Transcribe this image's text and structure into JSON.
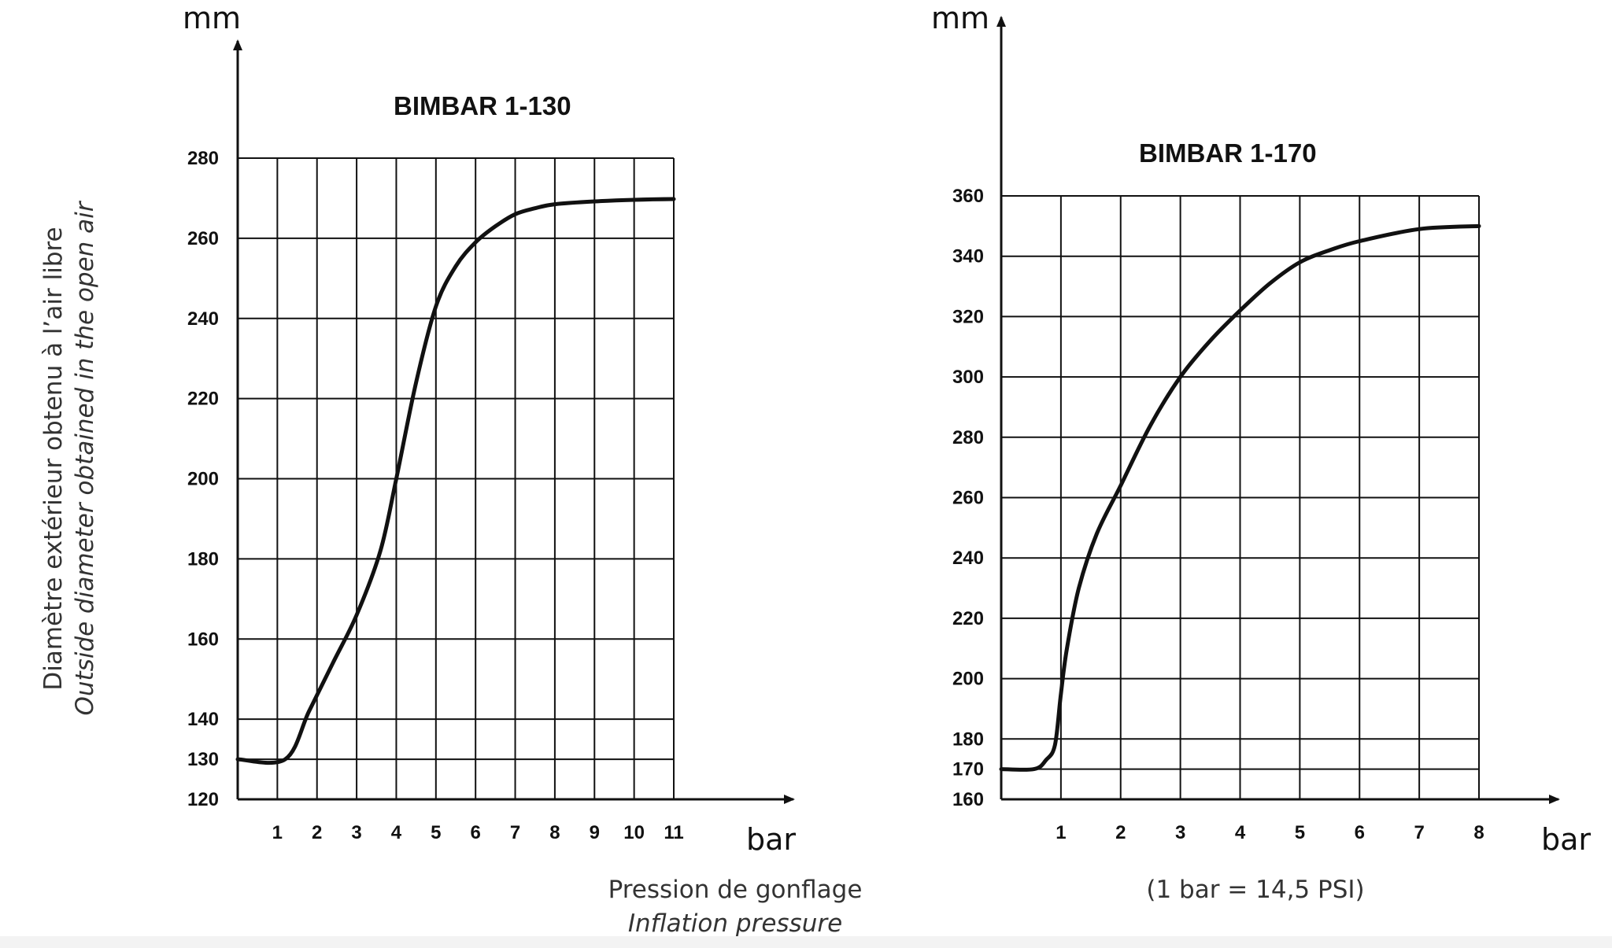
{
  "y_axis_label": {
    "fr": "Diamètre extérieur obtenu à l’air libre",
    "en": "Outside diameter obtained in the open air"
  },
  "x_axis_label": {
    "fr": "Pression de gonflage",
    "en": "Inflation pressure"
  },
  "footnote": "(1 bar = 14,5 PSI)",
  "chart_data": [
    {
      "type": "line",
      "title": "BIMBAR 1-130",
      "xlabel": "bar",
      "ylabel": "mm",
      "xlim": [
        0,
        11
      ],
      "ylim": [
        120,
        280
      ],
      "x_ticks": [
        1,
        2,
        3,
        4,
        5,
        6,
        7,
        8,
        9,
        10,
        11
      ],
      "y_ticks": [
        120,
        130,
        140,
        160,
        180,
        200,
        220,
        240,
        260,
        280
      ],
      "grid": true,
      "series": [
        {
          "name": "BIMBAR 1-130",
          "x": [
            0,
            1.2,
            1.8,
            2.4,
            3,
            3.6,
            4,
            4.5,
            5,
            5.5,
            6,
            6.5,
            7,
            7.5,
            8,
            9,
            10,
            11
          ],
          "y": [
            130,
            130,
            142,
            154,
            166,
            182,
            200,
            224,
            243,
            253,
            259,
            263,
            266,
            267.5,
            268.5,
            269.2,
            269.6,
            269.8
          ]
        }
      ]
    },
    {
      "type": "line",
      "title": "BIMBAR 1-170",
      "xlabel": "bar",
      "ylabel": "mm",
      "xlim": [
        0,
        8
      ],
      "ylim": [
        160,
        360
      ],
      "x_ticks": [
        1,
        2,
        3,
        4,
        5,
        6,
        7,
        8
      ],
      "y_ticks": [
        160,
        170,
        180,
        200,
        220,
        240,
        260,
        280,
        300,
        320,
        340,
        360
      ],
      "grid": true,
      "series": [
        {
          "name": "BIMBAR 1-170",
          "x": [
            0,
            0.55,
            0.75,
            0.9,
            1,
            1.1,
            1.3,
            1.6,
            2,
            2.5,
            3,
            3.5,
            4,
            4.5,
            5,
            5.5,
            6,
            7,
            8
          ],
          "y": [
            170,
            170,
            173,
            178,
            195,
            210,
            230,
            248,
            264,
            284,
            300,
            312,
            322,
            331,
            338,
            342,
            345,
            349,
            350
          ]
        }
      ]
    }
  ]
}
